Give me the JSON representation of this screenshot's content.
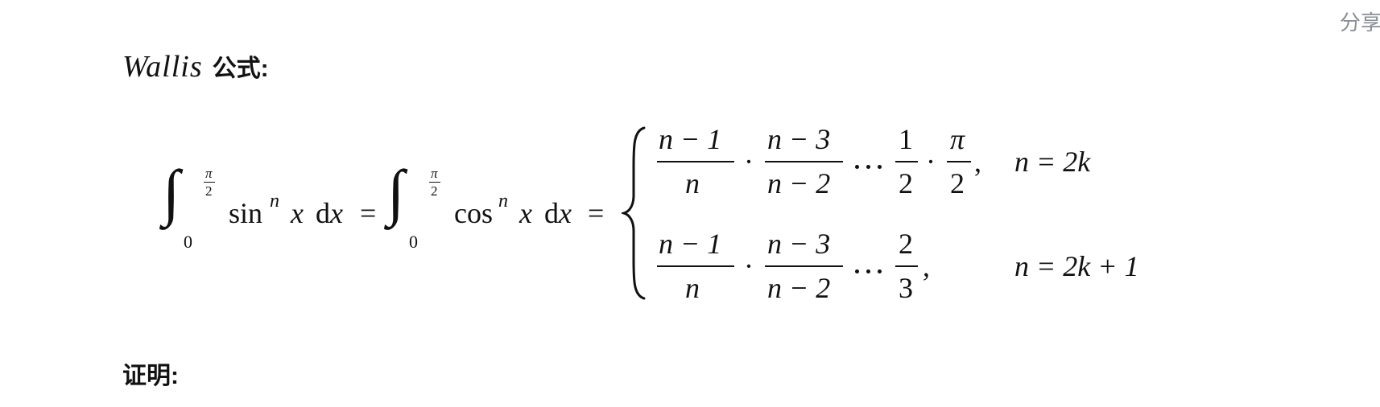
{
  "share": {
    "label": "分享"
  },
  "heading": {
    "name": "Wallis",
    "suffix": "公式",
    "colon": ":"
  },
  "formula": {
    "integral_sign": "∫",
    "lower_limit": "0",
    "upper_limit_num": "π",
    "upper_limit_den": "2",
    "sin_func": "sin",
    "cos_func": "cos",
    "power": "n",
    "variable": "x",
    "differential": "d",
    "equals": "=",
    "case_even": {
      "f1_num": "n − 1",
      "f1_den": "n",
      "f2_num": "n − 3",
      "f2_den": "n − 2",
      "f3_num": "1",
      "f3_den": "2",
      "f4_num": "π",
      "f4_den": "2",
      "cdot": "·",
      "ellipsis": "⋯",
      "comma": ",",
      "condition": "n = 2k"
    },
    "case_odd": {
      "f1_num": "n − 1",
      "f1_den": "n",
      "f2_num": "n − 3",
      "f2_den": "n − 2",
      "f3_num": "2",
      "f3_den": "3",
      "cdot": "·",
      "ellipsis": "⋯",
      "comma": ",",
      "condition": "n = 2k + 1"
    }
  },
  "proof": {
    "label": "证明:"
  }
}
